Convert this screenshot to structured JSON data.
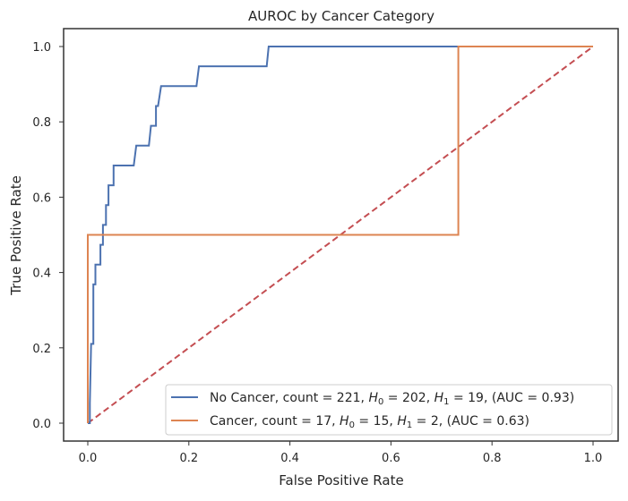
{
  "chart_data": {
    "type": "line",
    "title": "AUROC by Cancer Category",
    "xlabel": "False Positive Rate",
    "ylabel": "True Positive Rate",
    "xlim": [
      -0.05,
      1.05
    ],
    "ylim": [
      -0.05,
      1.05
    ],
    "xticks": [
      0.0,
      0.2,
      0.4,
      0.6,
      0.8,
      1.0
    ],
    "yticks": [
      0.0,
      0.2,
      0.4,
      0.6,
      0.8,
      1.0
    ],
    "xtick_labels": [
      "0.0",
      "0.2",
      "0.4",
      "0.6",
      "0.8",
      "1.0"
    ],
    "ytick_labels": [
      "0.0",
      "0.2",
      "0.4",
      "0.6",
      "0.8",
      "1.0"
    ],
    "grid": false,
    "legend_position": "lower-right",
    "series": [
      {
        "name": "No Cancer",
        "legend": {
          "prefix": "No Cancer, count = 221, ",
          "h0": "202",
          "h1": "19",
          "suffix": ", (AUC = 0.93)"
        },
        "color": "#4c72b0",
        "style": "solid",
        "x": [
          0,
          0.004,
          0.004,
          0.0066,
          0.0066,
          0.011,
          0.011,
          0.015,
          0.015,
          0.025,
          0.025,
          0.03,
          0.03,
          0.036,
          0.036,
          0.041,
          0.041,
          0.051,
          0.051,
          0.091,
          0.096,
          0.121,
          0.125,
          0.135,
          0.135,
          0.139,
          0.145,
          0.215,
          0.22,
          0.354,
          0.358,
          1
        ],
        "y": [
          0,
          0,
          0.0526,
          0.2105,
          0.2105,
          0.2105,
          0.3684,
          0.3684,
          0.4211,
          0.4211,
          0.4737,
          0.4737,
          0.5263,
          0.5263,
          0.5789,
          0.5789,
          0.6316,
          0.6316,
          0.6842,
          0.6842,
          0.7368,
          0.7368,
          0.7895,
          0.7895,
          0.8421,
          0.8421,
          0.8947,
          0.8947,
          0.9474,
          0.9474,
          1,
          1
        ]
      },
      {
        "name": "Cancer",
        "legend": {
          "prefix": "Cancer, count = 17, ",
          "h0": "15",
          "h1": "2",
          "suffix": ", (AUC = 0.63)"
        },
        "color": "#dd8452",
        "style": "solid",
        "x": [
          0,
          0,
          0.7333,
          0.7333,
          1
        ],
        "y": [
          0,
          0.5,
          0.5,
          1,
          1
        ]
      },
      {
        "name": "Chance",
        "color": "#c44e52",
        "style": "dashed",
        "x": [
          0,
          1
        ],
        "y": [
          0,
          1
        ]
      }
    ],
    "h0_label": "H",
    "h0_sub": "0",
    "h1_sub": "1"
  }
}
